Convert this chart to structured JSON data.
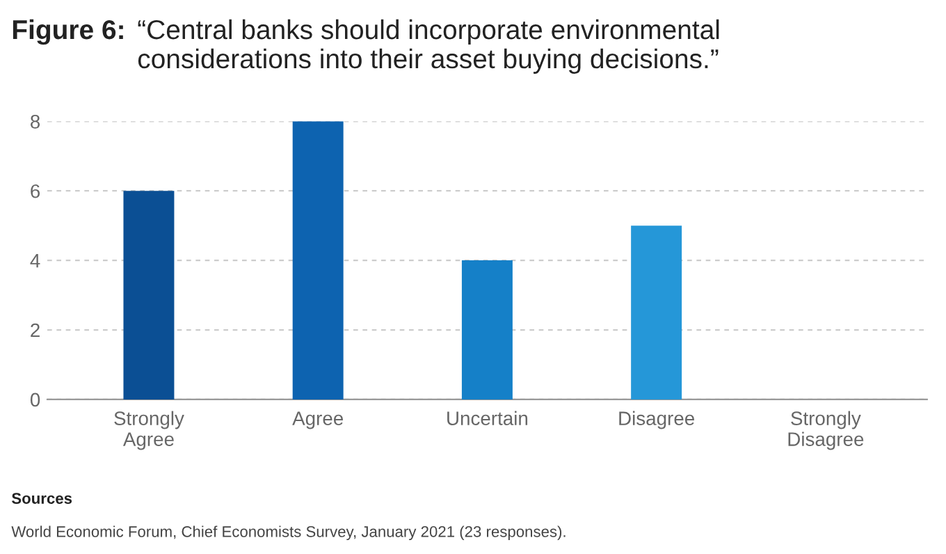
{
  "chart_data": {
    "type": "bar",
    "title": "“Central banks should incorporate environmental\nconsiderations into their asset buying decisions.”",
    "categories": [
      "Strongly\nAgree",
      "Agree",
      "Uncertain",
      "Disagree",
      "Strongly\nDisagree"
    ],
    "values": [
      6,
      8,
      4,
      5,
      0
    ],
    "colors": [
      "#0b4f94",
      "#0d63b0",
      "#1580c8",
      "#2597d8",
      "#3aa8e0"
    ],
    "ylim": [
      0,
      8
    ],
    "yticks": [
      0,
      2,
      4,
      6,
      8
    ],
    "grid": "y",
    "annotations": [
      "Figure 6:",
      "Sources",
      "World Economic Forum, Chief Economists Survey, January 2021 (23 responses)."
    ]
  }
}
